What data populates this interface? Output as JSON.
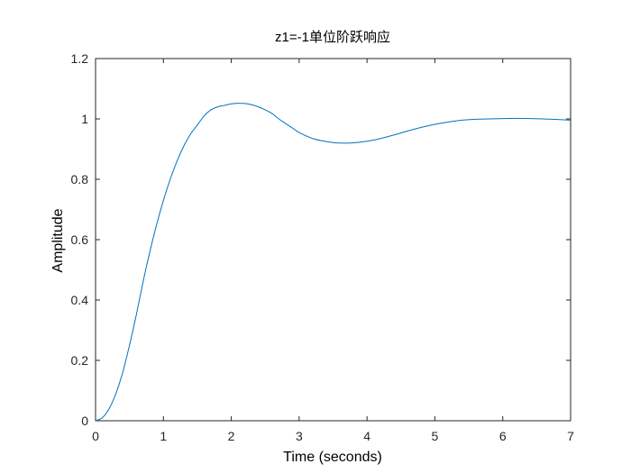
{
  "chart_data": {
    "type": "line",
    "title": "z1=-1单位阶跃响应",
    "xlabel": "Time (seconds)",
    "ylabel": "Amplitude",
    "xlim": [
      0,
      7
    ],
    "ylim": [
      0,
      1.2
    ],
    "xticks": [
      "0",
      "1",
      "2",
      "3",
      "4",
      "5",
      "6",
      "7"
    ],
    "yticks": [
      "0",
      "0.2",
      "0.4",
      "0.6",
      "0.8",
      "1",
      "1.2"
    ],
    "grid": false,
    "line_color": "#0072BD",
    "series": [
      {
        "x": [
          0,
          0.1,
          0.2,
          0.3,
          0.4,
          0.5,
          0.6,
          0.7,
          0.8,
          0.9,
          1.0,
          1.1,
          1.2,
          1.3,
          1.4,
          1.5,
          1.6,
          1.7,
          1.8,
          1.9,
          2.0,
          2.1,
          2.2,
          2.3,
          2.4,
          2.5,
          2.6,
          2.7,
          2.8,
          2.9,
          3.0,
          3.2,
          3.4,
          3.6,
          3.8,
          4.0,
          4.2,
          4.4,
          4.6,
          4.8,
          5.0,
          5.2,
          5.4,
          5.6,
          5.8,
          6.0,
          6.2,
          6.4,
          6.6,
          6.8,
          7.0
        ],
        "values": [
          0,
          0.01,
          0.04,
          0.09,
          0.16,
          0.25,
          0.35,
          0.46,
          0.56,
          0.65,
          0.73,
          0.8,
          0.86,
          0.91,
          0.95,
          0.98,
          1.01,
          1.03,
          1.04,
          1.045,
          1.05,
          1.052,
          1.051,
          1.047,
          1.04,
          1.03,
          1.018,
          1.0,
          0.985,
          0.97,
          0.955,
          0.935,
          0.925,
          0.92,
          0.921,
          0.926,
          0.935,
          0.947,
          0.96,
          0.972,
          0.982,
          0.99,
          0.996,
          0.999,
          1.0,
          1.001,
          1.002,
          1.001,
          1.0,
          0.998,
          0.996
        ]
      }
    ]
  }
}
